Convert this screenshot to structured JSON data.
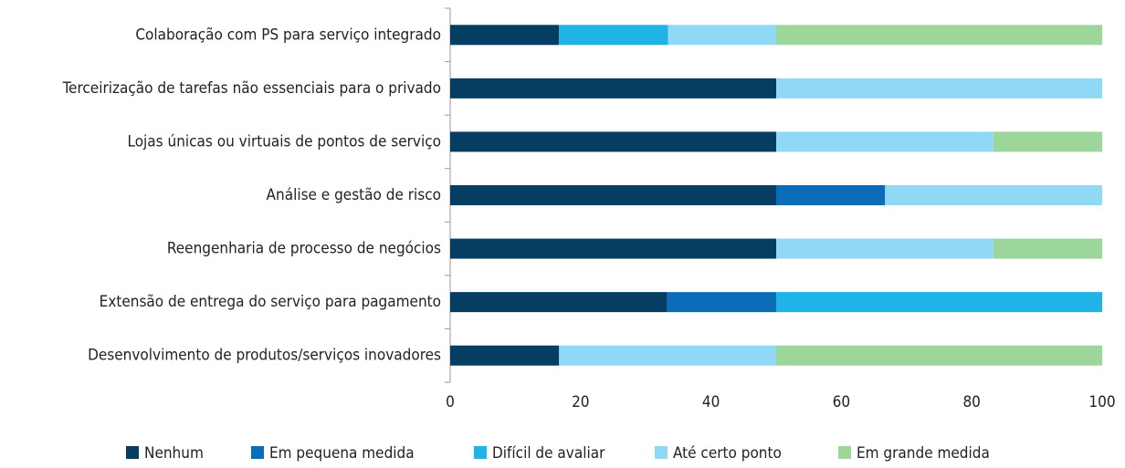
{
  "chart_data": {
    "type": "stacked_barh",
    "categories": [
      "Colaboração com PS para serviço integrado",
      "Terceirização de tarefas não essenciais para o privado",
      "Lojas únicas ou virtuais de pontos de serviço",
      "Análise e gestão de risco",
      "Reengenharia de processo de negócios",
      "Extensão de entrega do serviço para pagamento",
      "Desenvolvimento de produtos/serviços inovadores"
    ],
    "series": [
      {
        "name": "Nenhum",
        "color": "#063d62",
        "values": [
          16.7,
          50,
          50,
          50,
          50,
          33.3,
          16.7
        ]
      },
      {
        "name": "Em pequena medida",
        "color": "#0b6db7",
        "values": [
          0,
          0,
          0,
          16.7,
          0,
          16.7,
          0
        ]
      },
      {
        "name": "Difícil de avaliar",
        "color": "#1fb3e8",
        "values": [
          16.7,
          0,
          0,
          0,
          0,
          50,
          0
        ]
      },
      {
        "name": "Até certo ponto",
        "color": "#8fd8f6",
        "values": [
          16.6,
          50,
          33.3,
          33.3,
          33.3,
          0,
          33.3
        ]
      },
      {
        "name": "Em grande medida",
        "color": "#9dd69a",
        "values": [
          50,
          0,
          16.7,
          0,
          16.7,
          0,
          50
        ]
      }
    ],
    "xlim": [
      0,
      100
    ],
    "xticks": [
      0,
      20,
      40,
      60,
      80,
      100
    ],
    "legend": "bottom"
  }
}
